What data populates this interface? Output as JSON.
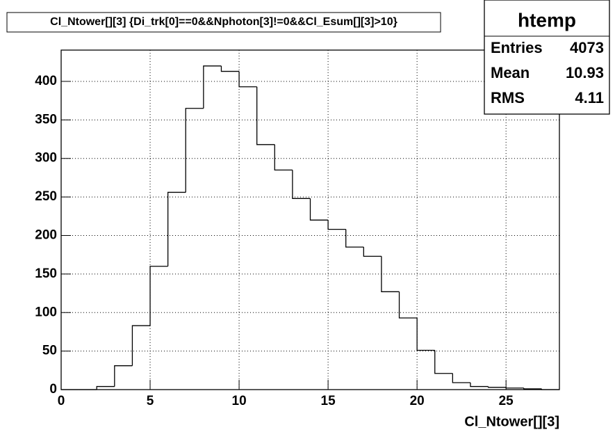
{
  "chart_data": {
    "type": "histogram",
    "title": "Cl_Ntower[][3] {Di_trk[0]==0&&Nphoton[3]!=0&&Cl_Esum[][3]>10}",
    "x_label": "Cl_Ntower[][3]",
    "bins": [
      0,
      1,
      2,
      3,
      4,
      5,
      6,
      7,
      8,
      9,
      10,
      11,
      12,
      13,
      14,
      15,
      16,
      17,
      18,
      19,
      20,
      21,
      22,
      23,
      24,
      25,
      26,
      27,
      28
    ],
    "values": [
      0,
      0,
      4,
      31,
      83,
      160,
      256,
      365,
      420,
      413,
      393,
      318,
      285,
      248,
      220,
      208,
      185,
      173,
      127,
      93,
      51,
      21,
      9,
      4,
      3,
      2,
      1,
      0
    ],
    "color": "#000000",
    "xlim": [
      0,
      28
    ],
    "xticks": [
      0,
      5,
      10,
      15,
      20,
      25
    ],
    "ylim": [
      0,
      440.6
    ],
    "yticks": [
      0,
      50,
      100,
      150,
      200,
      250,
      300,
      350,
      400
    ],
    "grid": true,
    "stats": {
      "title": "htemp",
      "rows": [
        {
          "label": "Entries",
          "value": 4073
        },
        {
          "label": "Mean",
          "value": 10.93
        },
        {
          "label": "RMS",
          "value": 4.11
        }
      ]
    }
  }
}
